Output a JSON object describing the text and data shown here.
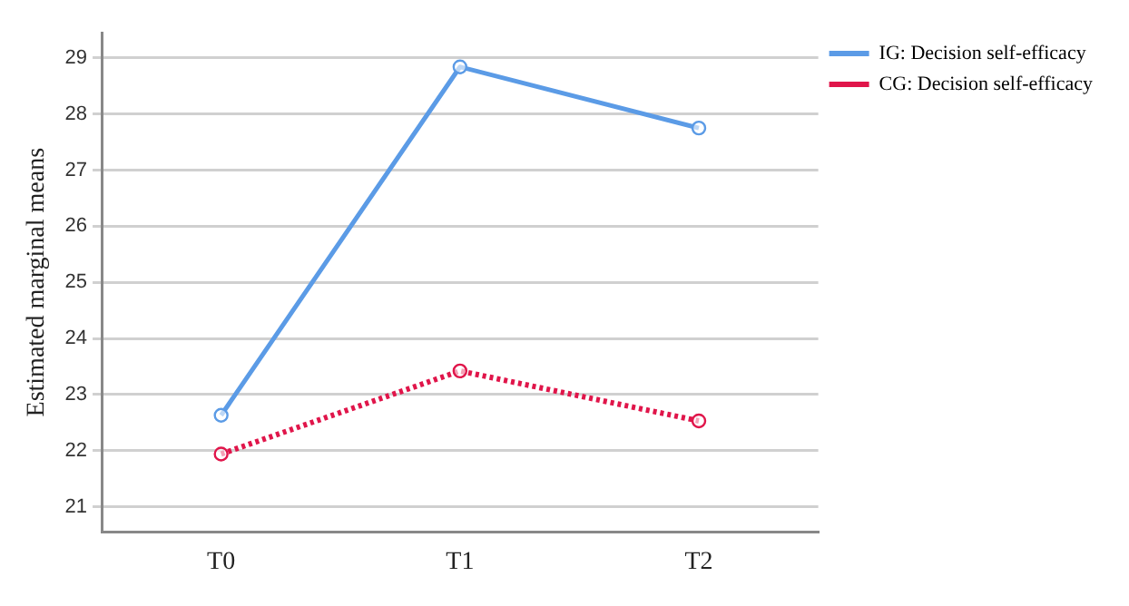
{
  "chart_data": {
    "type": "line",
    "ylabel": "Estimated marginal means",
    "categories": [
      "T0",
      "T1",
      "T2"
    ],
    "series": [
      {
        "name": "IG: Decision self-efficacy",
        "color": "#5b9be6",
        "values": [
          22.63,
          28.84,
          27.75
        ],
        "line_style": "solid"
      },
      {
        "name": "CG: Decision self-efficacy",
        "color": "#e0154a",
        "values": [
          21.94,
          23.42,
          22.53
        ],
        "line_style": "dotted"
      }
    ],
    "ylim": [
      20.55,
      29.45
    ],
    "yticks": [
      21,
      22,
      23,
      24,
      25,
      26,
      27,
      28,
      29
    ],
    "grid": "y",
    "legend": "top right",
    "marker": "circle"
  }
}
